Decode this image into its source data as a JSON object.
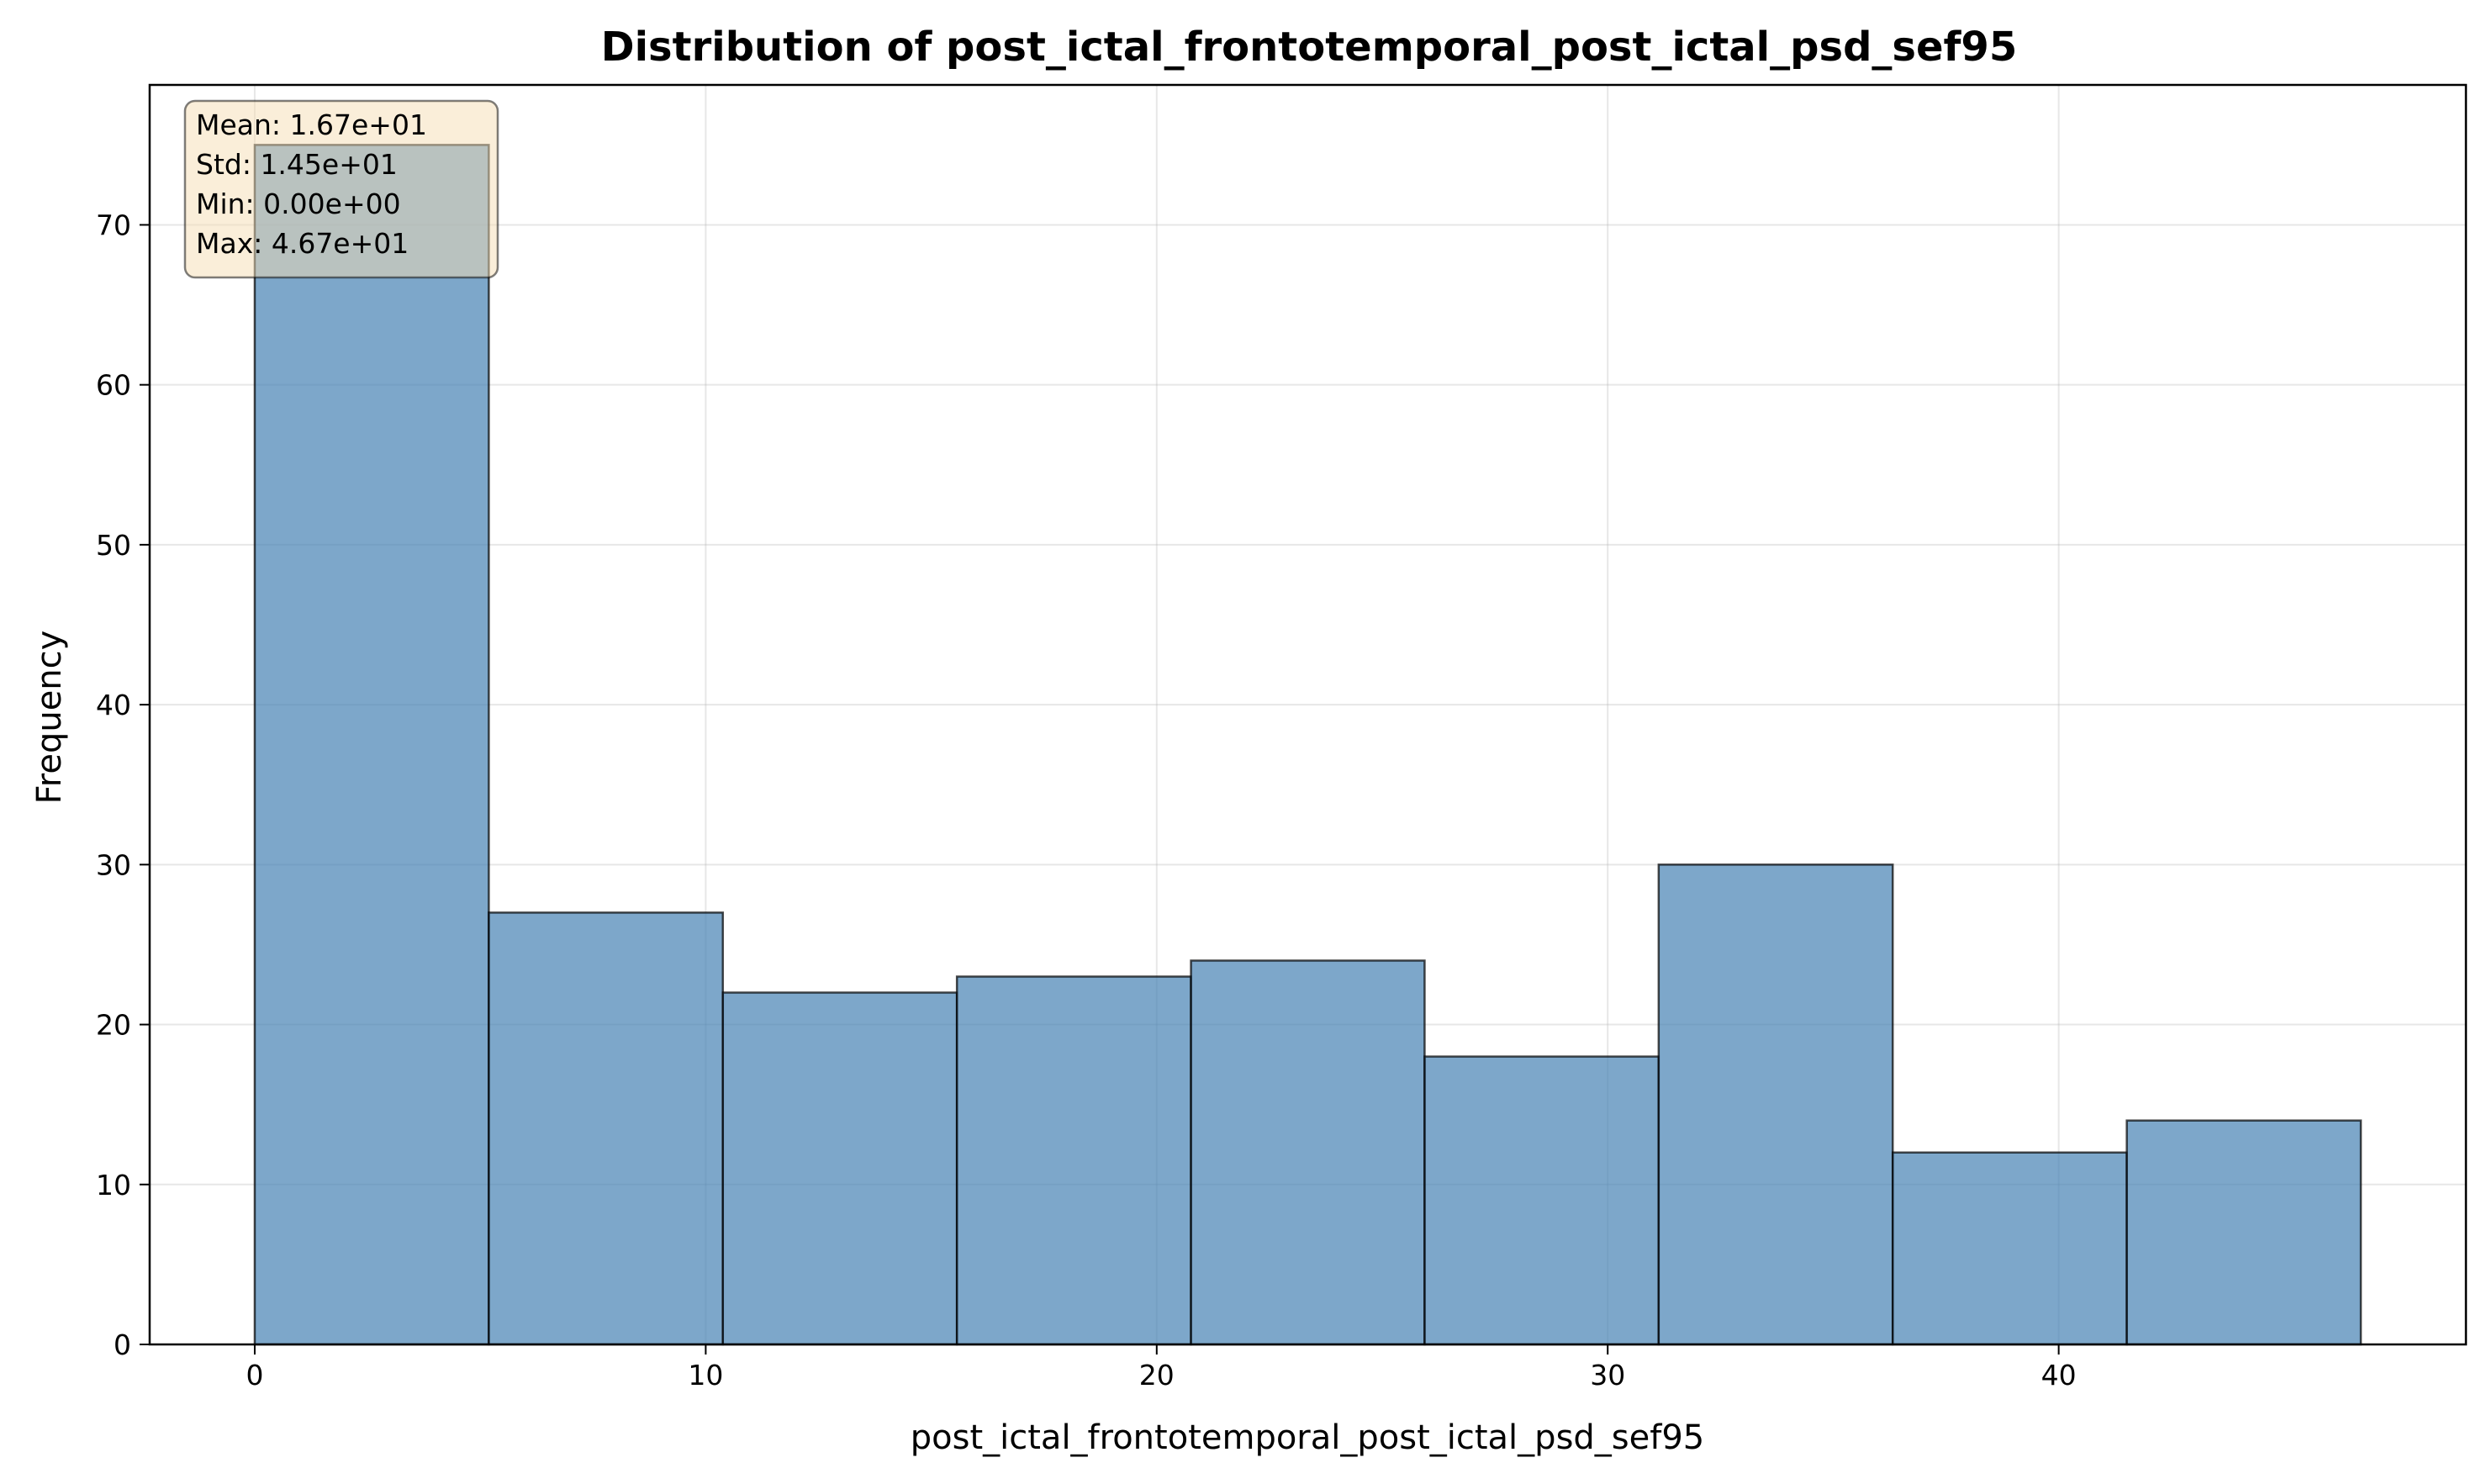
{
  "chart_data": {
    "type": "histogram",
    "title": "Distribution of post_ictal_frontotemporal_post_ictal_psd_sef95",
    "xlabel": "post_ictal_frontotemporal_post_ictal_psd_sef95",
    "ylabel": "Frequency",
    "xlim": [
      -2.33,
      49.03
    ],
    "ylim": [
      0,
      78.75
    ],
    "grid": true,
    "bar_color": "#4682b4",
    "edge_color": "#000000",
    "bin_edges": [
      0,
      5.19,
      10.38,
      15.57,
      20.76,
      25.94,
      31.13,
      36.32,
      41.51,
      46.7
    ],
    "counts": [
      75,
      27,
      22,
      23,
      24,
      18,
      30,
      12,
      14
    ],
    "xticks": [
      0,
      10,
      20,
      30,
      40
    ],
    "yticks": [
      0,
      10,
      20,
      30,
      40,
      50,
      60,
      70
    ],
    "stats_box": {
      "lines": [
        "Mean: 1.67e+01",
        "Std: 1.45e+01",
        "Min: 0.00e+00",
        "Max: 4.67e+01"
      ],
      "location": "top-left",
      "facecolor": "#f5deb3"
    }
  }
}
